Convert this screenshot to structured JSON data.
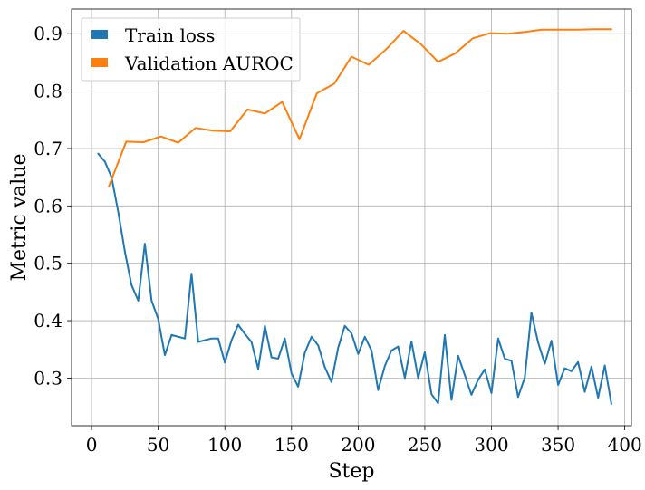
{
  "chart_data": {
    "type": "line",
    "title": "",
    "xlabel": "Step",
    "ylabel": "Metric value",
    "xlim": [
      -15,
      405
    ],
    "ylim": [
      0.217,
      0.943
    ],
    "xticks": [
      0,
      50,
      100,
      150,
      200,
      250,
      300,
      350,
      400
    ],
    "yticks": [
      0.3,
      0.4,
      0.5,
      0.6,
      0.7,
      0.8,
      0.9
    ],
    "grid": true,
    "legend_position": "top-left",
    "series": [
      {
        "name": "Train loss",
        "color": "#1f77b4",
        "x": [
          5,
          10,
          15,
          20,
          25,
          30,
          35,
          40,
          45,
          50,
          55,
          60,
          70,
          75,
          80,
          85,
          90,
          95,
          100,
          105,
          110,
          115,
          120,
          125,
          130,
          135,
          140,
          145,
          150,
          155,
          160,
          165,
          170,
          175,
          180,
          185,
          190,
          195,
          200,
          205,
          210,
          215,
          220,
          225,
          230,
          235,
          240,
          245,
          250,
          255,
          260,
          265,
          270,
          275,
          280,
          285,
          290,
          295,
          300,
          305,
          310,
          315,
          320,
          325,
          330,
          335,
          340,
          345,
          350,
          355,
          360,
          365,
          370,
          375,
          380,
          385,
          390
        ],
        "y": [
          0.691,
          0.677,
          0.65,
          0.59,
          0.52,
          0.462,
          0.435,
          0.534,
          0.435,
          0.403,
          0.34,
          0.375,
          0.369,
          0.482,
          0.363,
          0.366,
          0.369,
          0.369,
          0.327,
          0.366,
          0.393,
          0.377,
          0.363,
          0.316,
          0.391,
          0.336,
          0.334,
          0.369,
          0.308,
          0.285,
          0.344,
          0.372,
          0.357,
          0.319,
          0.293,
          0.353,
          0.391,
          0.378,
          0.342,
          0.372,
          0.348,
          0.279,
          0.321,
          0.348,
          0.355,
          0.3,
          0.364,
          0.3,
          0.345,
          0.272,
          0.256,
          0.375,
          0.262,
          0.339,
          0.305,
          0.271,
          0.297,
          0.315,
          0.274,
          0.369,
          0.334,
          0.33,
          0.267,
          0.301,
          0.414,
          0.362,
          0.325,
          0.365,
          0.288,
          0.317,
          0.312,
          0.328,
          0.276,
          0.32,
          0.266,
          0.322,
          0.255
        ]
      },
      {
        "name": "Validation AUROC",
        "color": "#ff7f0e",
        "x": [
          13,
          26,
          39,
          52,
          65,
          78,
          91,
          104,
          117,
          130,
          143,
          156,
          169,
          182,
          195,
          208,
          221,
          234,
          247,
          260,
          273,
          286,
          299,
          312,
          325,
          338,
          351,
          364,
          377,
          390
        ],
        "y": [
          0.634,
          0.712,
          0.711,
          0.721,
          0.71,
          0.736,
          0.731,
          0.73,
          0.768,
          0.761,
          0.781,
          0.716,
          0.796,
          0.813,
          0.86,
          0.846,
          0.873,
          0.905,
          0.882,
          0.851,
          0.866,
          0.892,
          0.901,
          0.9,
          0.903,
          0.907,
          0.907,
          0.907,
          0.908,
          0.908
        ]
      }
    ]
  }
}
